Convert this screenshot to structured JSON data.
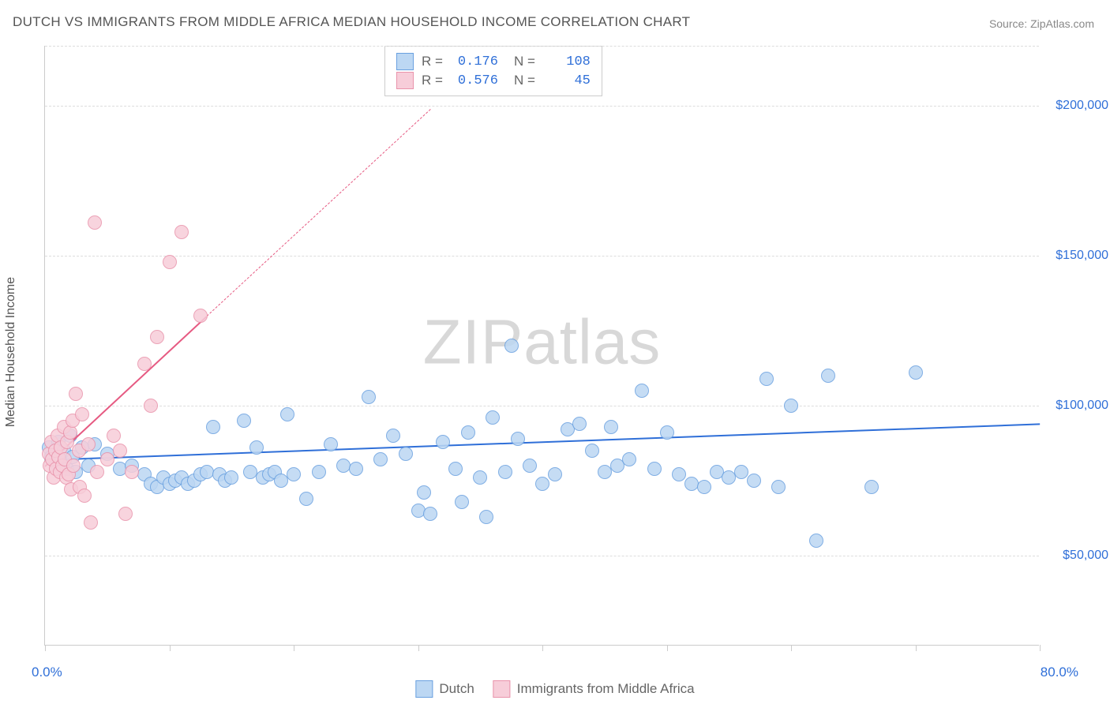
{
  "title": "DUTCH VS IMMIGRANTS FROM MIDDLE AFRICA MEDIAN HOUSEHOLD INCOME CORRELATION CHART",
  "source": "Source: ZipAtlas.com",
  "watermark": "ZIPatlas",
  "ylabel": "Median Household Income",
  "chart": {
    "type": "scatter",
    "xlim": [
      0,
      80
    ],
    "ylim": [
      20000,
      220000
    ],
    "xaxis_label_min": "0.0%",
    "xaxis_label_max": "80.0%",
    "yticks": [
      50000,
      100000,
      150000,
      200000
    ],
    "ytick_labels": [
      "$50,000",
      "$100,000",
      "$150,000",
      "$200,000"
    ],
    "xticks": [
      0,
      10,
      20,
      30,
      40,
      50,
      60,
      70,
      80
    ],
    "grid_color": "#dddddd",
    "axis_color": "#cccccc",
    "background_color": "#ffffff",
    "point_radius": 9,
    "series": [
      {
        "name": "Dutch",
        "fill": "#bcd7f3",
        "stroke": "#6aa1e0",
        "trend_color": "#2f6fd8",
        "trend_width": 2.5,
        "trend_dashed_extension": false,
        "R": "0.176",
        "N": "108",
        "trend": {
          "x1": 0,
          "y1": 82000,
          "x2": 80,
          "y2": 94000
        },
        "points": [
          [
            0.3,
            86000
          ],
          [
            0.5,
            83000
          ],
          [
            0.8,
            81000
          ],
          [
            1.0,
            80000
          ],
          [
            1.1,
            88000
          ],
          [
            1.2,
            82000
          ],
          [
            1.5,
            85000
          ],
          [
            1.8,
            79000
          ],
          [
            2.0,
            90000
          ],
          [
            2.2,
            83000
          ],
          [
            2.5,
            78000
          ],
          [
            3.0,
            86000
          ],
          [
            3.5,
            80000
          ],
          [
            4.0,
            87000
          ],
          [
            5.0,
            84000
          ],
          [
            6.0,
            79000
          ],
          [
            7.0,
            80000
          ],
          [
            8.0,
            77000
          ],
          [
            8.5,
            74000
          ],
          [
            9.0,
            73000
          ],
          [
            9.5,
            76000
          ],
          [
            10.0,
            74000
          ],
          [
            10.5,
            75000
          ],
          [
            11.0,
            76000
          ],
          [
            11.5,
            74000
          ],
          [
            12.0,
            75000
          ],
          [
            12.5,
            77000
          ],
          [
            13.0,
            78000
          ],
          [
            13.5,
            93000
          ],
          [
            14.0,
            77000
          ],
          [
            14.5,
            75000
          ],
          [
            15.0,
            76000
          ],
          [
            16.0,
            95000
          ],
          [
            16.5,
            78000
          ],
          [
            17.0,
            86000
          ],
          [
            17.5,
            76000
          ],
          [
            18.0,
            77000
          ],
          [
            18.5,
            78000
          ],
          [
            19.0,
            75000
          ],
          [
            19.5,
            97000
          ],
          [
            20.0,
            77000
          ],
          [
            21.0,
            69000
          ],
          [
            22.0,
            78000
          ],
          [
            23.0,
            87000
          ],
          [
            24.0,
            80000
          ],
          [
            25.0,
            79000
          ],
          [
            26.0,
            103000
          ],
          [
            27.0,
            82000
          ],
          [
            28.0,
            90000
          ],
          [
            29.0,
            84000
          ],
          [
            30.0,
            65000
          ],
          [
            30.5,
            71000
          ],
          [
            31.0,
            64000
          ],
          [
            32.0,
            88000
          ],
          [
            33.0,
            79000
          ],
          [
            33.5,
            68000
          ],
          [
            34.0,
            91000
          ],
          [
            35.0,
            76000
          ],
          [
            35.5,
            63000
          ],
          [
            36.0,
            96000
          ],
          [
            37.0,
            78000
          ],
          [
            37.5,
            120000
          ],
          [
            38.0,
            89000
          ],
          [
            39.0,
            80000
          ],
          [
            40.0,
            74000
          ],
          [
            41.0,
            77000
          ],
          [
            42.0,
            92000
          ],
          [
            43.0,
            94000
          ],
          [
            44.0,
            85000
          ],
          [
            45.0,
            78000
          ],
          [
            45.5,
            93000
          ],
          [
            46.0,
            80000
          ],
          [
            47.0,
            82000
          ],
          [
            48.0,
            105000
          ],
          [
            49.0,
            79000
          ],
          [
            50.0,
            91000
          ],
          [
            51.0,
            77000
          ],
          [
            52.0,
            74000
          ],
          [
            53.0,
            73000
          ],
          [
            54.0,
            78000
          ],
          [
            55.0,
            76000
          ],
          [
            56.0,
            78000
          ],
          [
            57.0,
            75000
          ],
          [
            58.0,
            109000
          ],
          [
            59.0,
            73000
          ],
          [
            60.0,
            100000
          ],
          [
            62.0,
            55000
          ],
          [
            63.0,
            110000
          ],
          [
            66.5,
            73000
          ],
          [
            70.0,
            111000
          ]
        ]
      },
      {
        "name": "Immigrants from Middle Africa",
        "fill": "#f7cdd9",
        "stroke": "#e993ab",
        "trend_color": "#e65a82",
        "trend_width": 2,
        "trend_dashed_extension": true,
        "R": "0.576",
        "N": "45",
        "trend": {
          "x1": 0,
          "y1": 80000,
          "x2": 13,
          "y2": 130000
        },
        "trend_dashed": {
          "x1": 13,
          "y1": 130000,
          "x2": 31,
          "y2": 199000
        },
        "points": [
          [
            0.3,
            84000
          ],
          [
            0.4,
            80000
          ],
          [
            0.5,
            88000
          ],
          [
            0.6,
            82000
          ],
          [
            0.7,
            76000
          ],
          [
            0.8,
            85000
          ],
          [
            0.9,
            79000
          ],
          [
            1.0,
            90000
          ],
          [
            1.1,
            83000
          ],
          [
            1.2,
            78000
          ],
          [
            1.3,
            86000
          ],
          [
            1.4,
            80000
          ],
          [
            1.5,
            93000
          ],
          [
            1.6,
            82000
          ],
          [
            1.7,
            76000
          ],
          [
            1.8,
            88000
          ],
          [
            1.9,
            77000
          ],
          [
            2.0,
            91000
          ],
          [
            2.1,
            72000
          ],
          [
            2.2,
            95000
          ],
          [
            2.3,
            80000
          ],
          [
            2.5,
            104000
          ],
          [
            2.7,
            85000
          ],
          [
            2.8,
            73000
          ],
          [
            3.0,
            97000
          ],
          [
            3.2,
            70000
          ],
          [
            3.5,
            87000
          ],
          [
            3.7,
            61000
          ],
          [
            4.0,
            161000
          ],
          [
            4.2,
            78000
          ],
          [
            5.0,
            82000
          ],
          [
            5.5,
            90000
          ],
          [
            6.0,
            85000
          ],
          [
            6.5,
            64000
          ],
          [
            7.0,
            78000
          ],
          [
            8.0,
            114000
          ],
          [
            8.5,
            100000
          ],
          [
            9.0,
            123000
          ],
          [
            10.0,
            148000
          ],
          [
            11.0,
            158000
          ],
          [
            12.5,
            130000
          ]
        ]
      }
    ]
  },
  "legend_box": {
    "rows": [
      {
        "swatch_fill": "#bcd7f3",
        "swatch_stroke": "#6aa1e0",
        "r_label": "R =",
        "r_val": "0.176",
        "n_label": "N =",
        "n_val": "108"
      },
      {
        "swatch_fill": "#f7cdd9",
        "swatch_stroke": "#e993ab",
        "r_label": "R =",
        "r_val": "0.576",
        "n_label": "N =",
        "n_val": "45"
      }
    ]
  },
  "bottom_legend": [
    {
      "swatch_fill": "#bcd7f3",
      "swatch_stroke": "#6aa1e0",
      "label": "Dutch"
    },
    {
      "swatch_fill": "#f7cdd9",
      "swatch_stroke": "#e993ab",
      "label": "Immigrants from Middle Africa"
    }
  ]
}
